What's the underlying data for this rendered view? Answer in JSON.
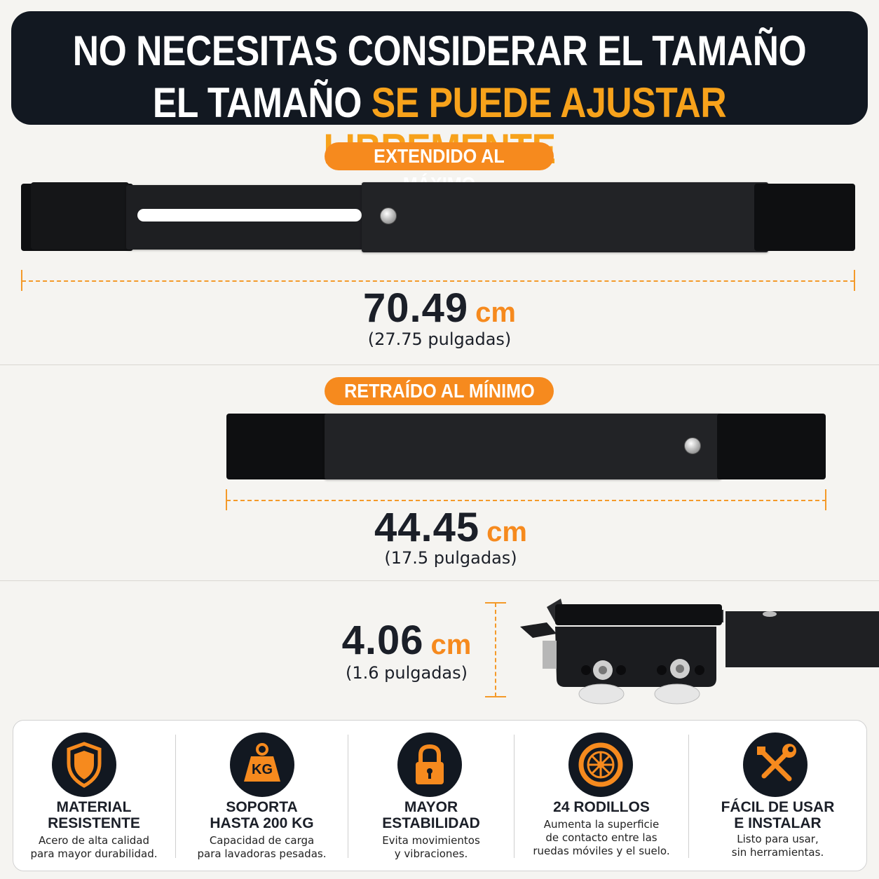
{
  "header": {
    "line1": "NO NECESITAS CONSIDERAR EL TAMAÑO",
    "line2_white": "EL TAMAÑO",
    "line2_highlight": "SE PUEDE AJUSTAR LIBREMENTE"
  },
  "extended": {
    "label": "EXTENDIDO AL MÁXIMO",
    "value": "70.49",
    "unit": "cm",
    "inches": "(27.75 pulgadas)"
  },
  "retracted": {
    "label": "RETRAÍDO AL MÍNIMO",
    "value": "44.45",
    "unit": "cm",
    "inches": "(17.5 pulgadas)"
  },
  "height": {
    "value": "4.06",
    "unit": "cm",
    "inches": "(1.6 pulgadas)"
  },
  "features": [
    {
      "icon": "shield-icon",
      "title1": "MATERIAL",
      "title2": "RESISTENTE",
      "desc1": "Acero de alta calidad",
      "desc2": "para mayor durabilidad."
    },
    {
      "icon": "kg-weight-icon",
      "title1": "SOPORTA",
      "title2": "HASTA 200 KG",
      "desc1": "Capacidad de carga",
      "desc2": "para lavadoras pesadas."
    },
    {
      "icon": "padlock-icon",
      "title1": "MAYOR",
      "title2": "ESTABILIDAD",
      "desc1": "Evita movimientos",
      "desc2": "y vibraciones."
    },
    {
      "icon": "wheel-icon",
      "title1": "24 RODILLOS",
      "desc1": "Aumenta la superficie",
      "desc2": "de contacto entre las",
      "desc3": "ruedas móviles y el suelo."
    },
    {
      "icon": "tools-icon",
      "title1": "FÁCIL DE USAR",
      "title2": "E INSTALAR",
      "desc1": "Listo para usar,",
      "desc2": "sin herramientas."
    }
  ],
  "icon_text": {
    "kg": "KG"
  },
  "colors": {
    "accent": "#f68a1e",
    "highlight": "#f7a21b",
    "dark": "#121821"
  }
}
